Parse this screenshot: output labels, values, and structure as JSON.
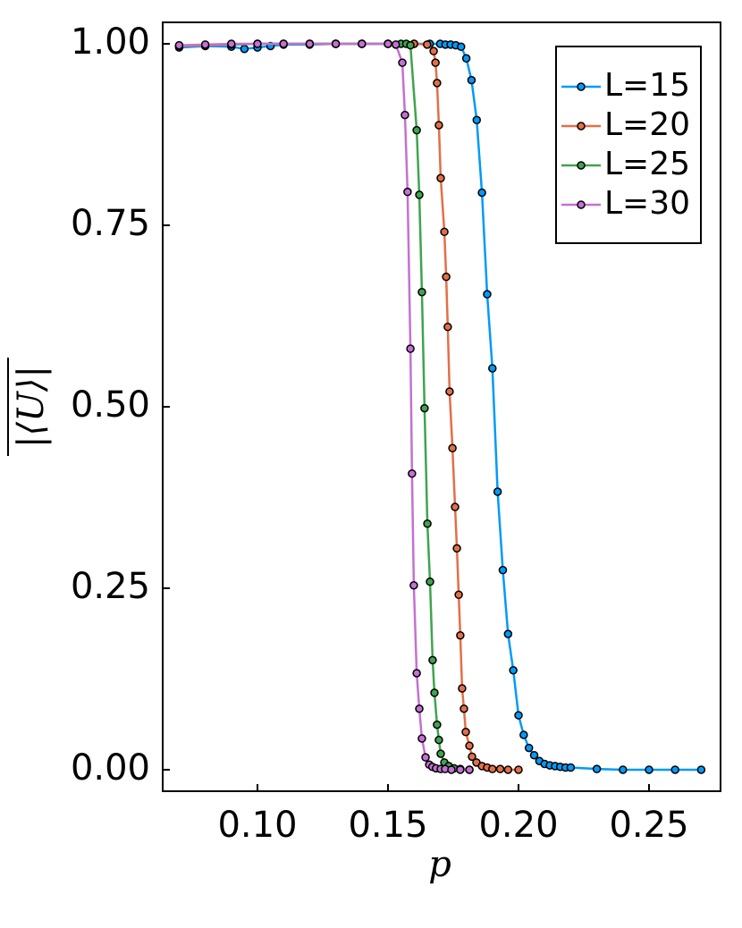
{
  "chart_data": {
    "type": "line",
    "xlabel": "p",
    "ylabel": "|⟨U⟩|",
    "xlim": [
      0.0637,
      0.2774
    ],
    "ylim": [
      -0.0296,
      1.0296
    ],
    "xticks": [
      {
        "value": 0.1,
        "label": "0.10"
      },
      {
        "value": 0.15,
        "label": "0.15"
      },
      {
        "value": 0.2,
        "label": "0.20"
      },
      {
        "value": 0.25,
        "label": "0.25"
      }
    ],
    "yticks": [
      {
        "value": 0,
        "label": "0.00"
      },
      {
        "value": 0.25,
        "label": "0.25"
      },
      {
        "value": 0.5,
        "label": "0.50"
      },
      {
        "value": 0.75,
        "label": "0.75"
      },
      {
        "value": 1,
        "label": "1.00"
      }
    ],
    "grid": false,
    "legend": "top-right",
    "series": [
      {
        "name": "L=15",
        "color": "#009AFA",
        "x": [
          0.07,
          0.08,
          0.09,
          0.095,
          0.1,
          0.105,
          0.11,
          0.12,
          0.13,
          0.14,
          0.15,
          0.16,
          0.166,
          0.17,
          0.172,
          0.174,
          0.176,
          0.178,
          0.18,
          0.182,
          0.184,
          0.186,
          0.188,
          0.19,
          0.192,
          0.194,
          0.196,
          0.198,
          0.2,
          0.202,
          0.204,
          0.206,
          0.208,
          0.21,
          0.212,
          0.214,
          0.216,
          0.218,
          0.22,
          0.23,
          0.24,
          0.25,
          0.26,
          0.27
        ],
        "values": [
          0.995,
          0.997,
          0.996,
          0.993,
          0.995,
          0.997,
          0.999,
          0.999,
          1,
          1,
          1,
          1,
          1,
          1,
          0.999,
          0.999,
          0.998,
          0.996,
          0.98,
          0.95,
          0.895,
          0.795,
          0.655,
          0.553,
          0.383,
          0.275,
          0.187,
          0.137,
          0.075,
          0.048,
          0.03,
          0.02,
          0.012,
          0.008,
          0.006,
          0.005,
          0.004,
          0.003,
          0.003,
          0.001,
          0,
          0,
          0,
          0
        ]
      },
      {
        "name": "L=20",
        "color": "#E36F47",
        "x": [
          0.07,
          0.08,
          0.09,
          0.1,
          0.11,
          0.12,
          0.13,
          0.14,
          0.15,
          0.16,
          0.165,
          0.1675,
          0.1682,
          0.1688,
          0.1695,
          0.1702,
          0.1716,
          0.1723,
          0.1729,
          0.1736,
          0.1747,
          0.1757,
          0.1764,
          0.1771,
          0.1777,
          0.1784,
          0.1791,
          0.1798,
          0.1812,
          0.1822,
          0.1839,
          0.186,
          0.188,
          0.19,
          0.193,
          0.196,
          0.2
        ],
        "values": [
          0.997,
          0.998,
          0.999,
          1,
          1,
          1,
          1,
          1,
          1,
          1,
          0.999,
          0.99,
          0.974,
          0.946,
          0.888,
          0.815,
          0.741,
          0.679,
          0.61,
          0.521,
          0.443,
          0.362,
          0.305,
          0.241,
          0.185,
          0.112,
          0.084,
          0.052,
          0.033,
          0.018,
          0.01,
          0.005,
          0.003,
          0.001,
          0.001,
          0,
          0
        ]
      },
      {
        "name": "L=25",
        "color": "#3EA44E",
        "x": [
          0.09,
          0.1,
          0.11,
          0.12,
          0.13,
          0.14,
          0.15,
          0.155,
          0.157,
          0.1586,
          0.161,
          0.162,
          0.163,
          0.164,
          0.1651,
          0.1661,
          0.1671,
          0.1678,
          0.1688,
          0.1695,
          0.1702,
          0.1716,
          0.1733,
          0.1753,
          0.1777,
          0.1812
        ],
        "values": [
          0.999,
          1,
          1,
          1,
          1,
          1,
          1,
          1,
          1,
          0.998,
          0.881,
          0.792,
          0.658,
          0.498,
          0.339,
          0.259,
          0.151,
          0.106,
          0.062,
          0.041,
          0.022,
          0.01,
          0.005,
          0.002,
          0.001,
          0
        ]
      },
      {
        "name": "L=30",
        "color": "#C371D2",
        "x": [
          0.07,
          0.08,
          0.09,
          0.1,
          0.11,
          0.12,
          0.13,
          0.14,
          0.15,
          0.153,
          0.1555,
          0.1565,
          0.1575,
          0.1586,
          0.1592,
          0.1599,
          0.161,
          0.162,
          0.163,
          0.1644,
          0.1658,
          0.167,
          0.1684,
          0.1702,
          0.1719,
          0.1743,
          0.1777,
          0.1812
        ],
        "values": [
          0.998,
          0.999,
          1,
          1,
          1,
          1,
          1,
          1,
          1,
          0.999,
          0.974,
          0.902,
          0.796,
          0.58,
          0.408,
          0.254,
          0.133,
          0.084,
          0.043,
          0.017,
          0.007,
          0.004,
          0.002,
          0.001,
          0.001,
          0,
          0,
          0
        ]
      }
    ]
  }
}
